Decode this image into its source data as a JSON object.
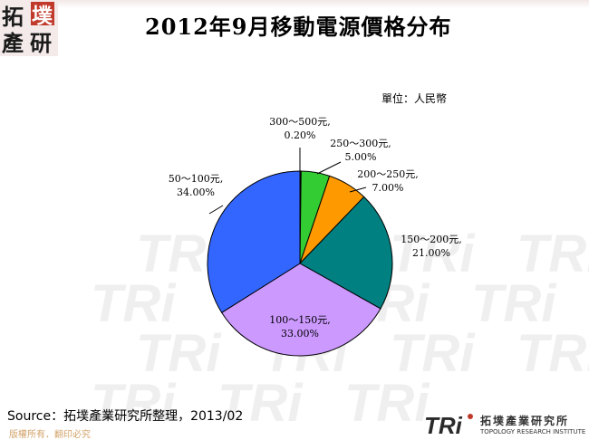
{
  "header": {
    "logo_text": "拓墣產研",
    "title": "2012年9月移動電源價格分布"
  },
  "unit_label": "單位：人民幣",
  "chart_data": {
    "type": "pie",
    "title": "2012年9月移動電源價格分布",
    "unit": "人民幣",
    "slices": [
      {
        "label": "300～500元,",
        "value_label": "0.20%",
        "value": 0.2,
        "color": "#1a1a1a"
      },
      {
        "label": "250～300元,",
        "value_label": "5.00%",
        "value": 5.0,
        "color": "#33cc33"
      },
      {
        "label": "200～250元,",
        "value_label": "7.00%",
        "value": 7.0,
        "color": "#ff9900"
      },
      {
        "label": "150～200元,",
        "value_label": "21.00%",
        "value": 21.0,
        "color": "#008080"
      },
      {
        "label": "100～150元,",
        "value_label": "33.00%",
        "value": 33.0,
        "color": "#cc99ff"
      },
      {
        "label": "50～100元,",
        "value_label": "34.00%",
        "value": 34.0,
        "color": "#3366ff"
      }
    ]
  },
  "footer": {
    "source": "Source：拓墣產業研究所整理，2013/02",
    "copyright": "版權所有．翻印必究",
    "logo_mark": "TRi",
    "org_name": "拓墣產業研究所",
    "org_name_en": "TOPOLOGY RESEARCH INSTITUTE"
  }
}
